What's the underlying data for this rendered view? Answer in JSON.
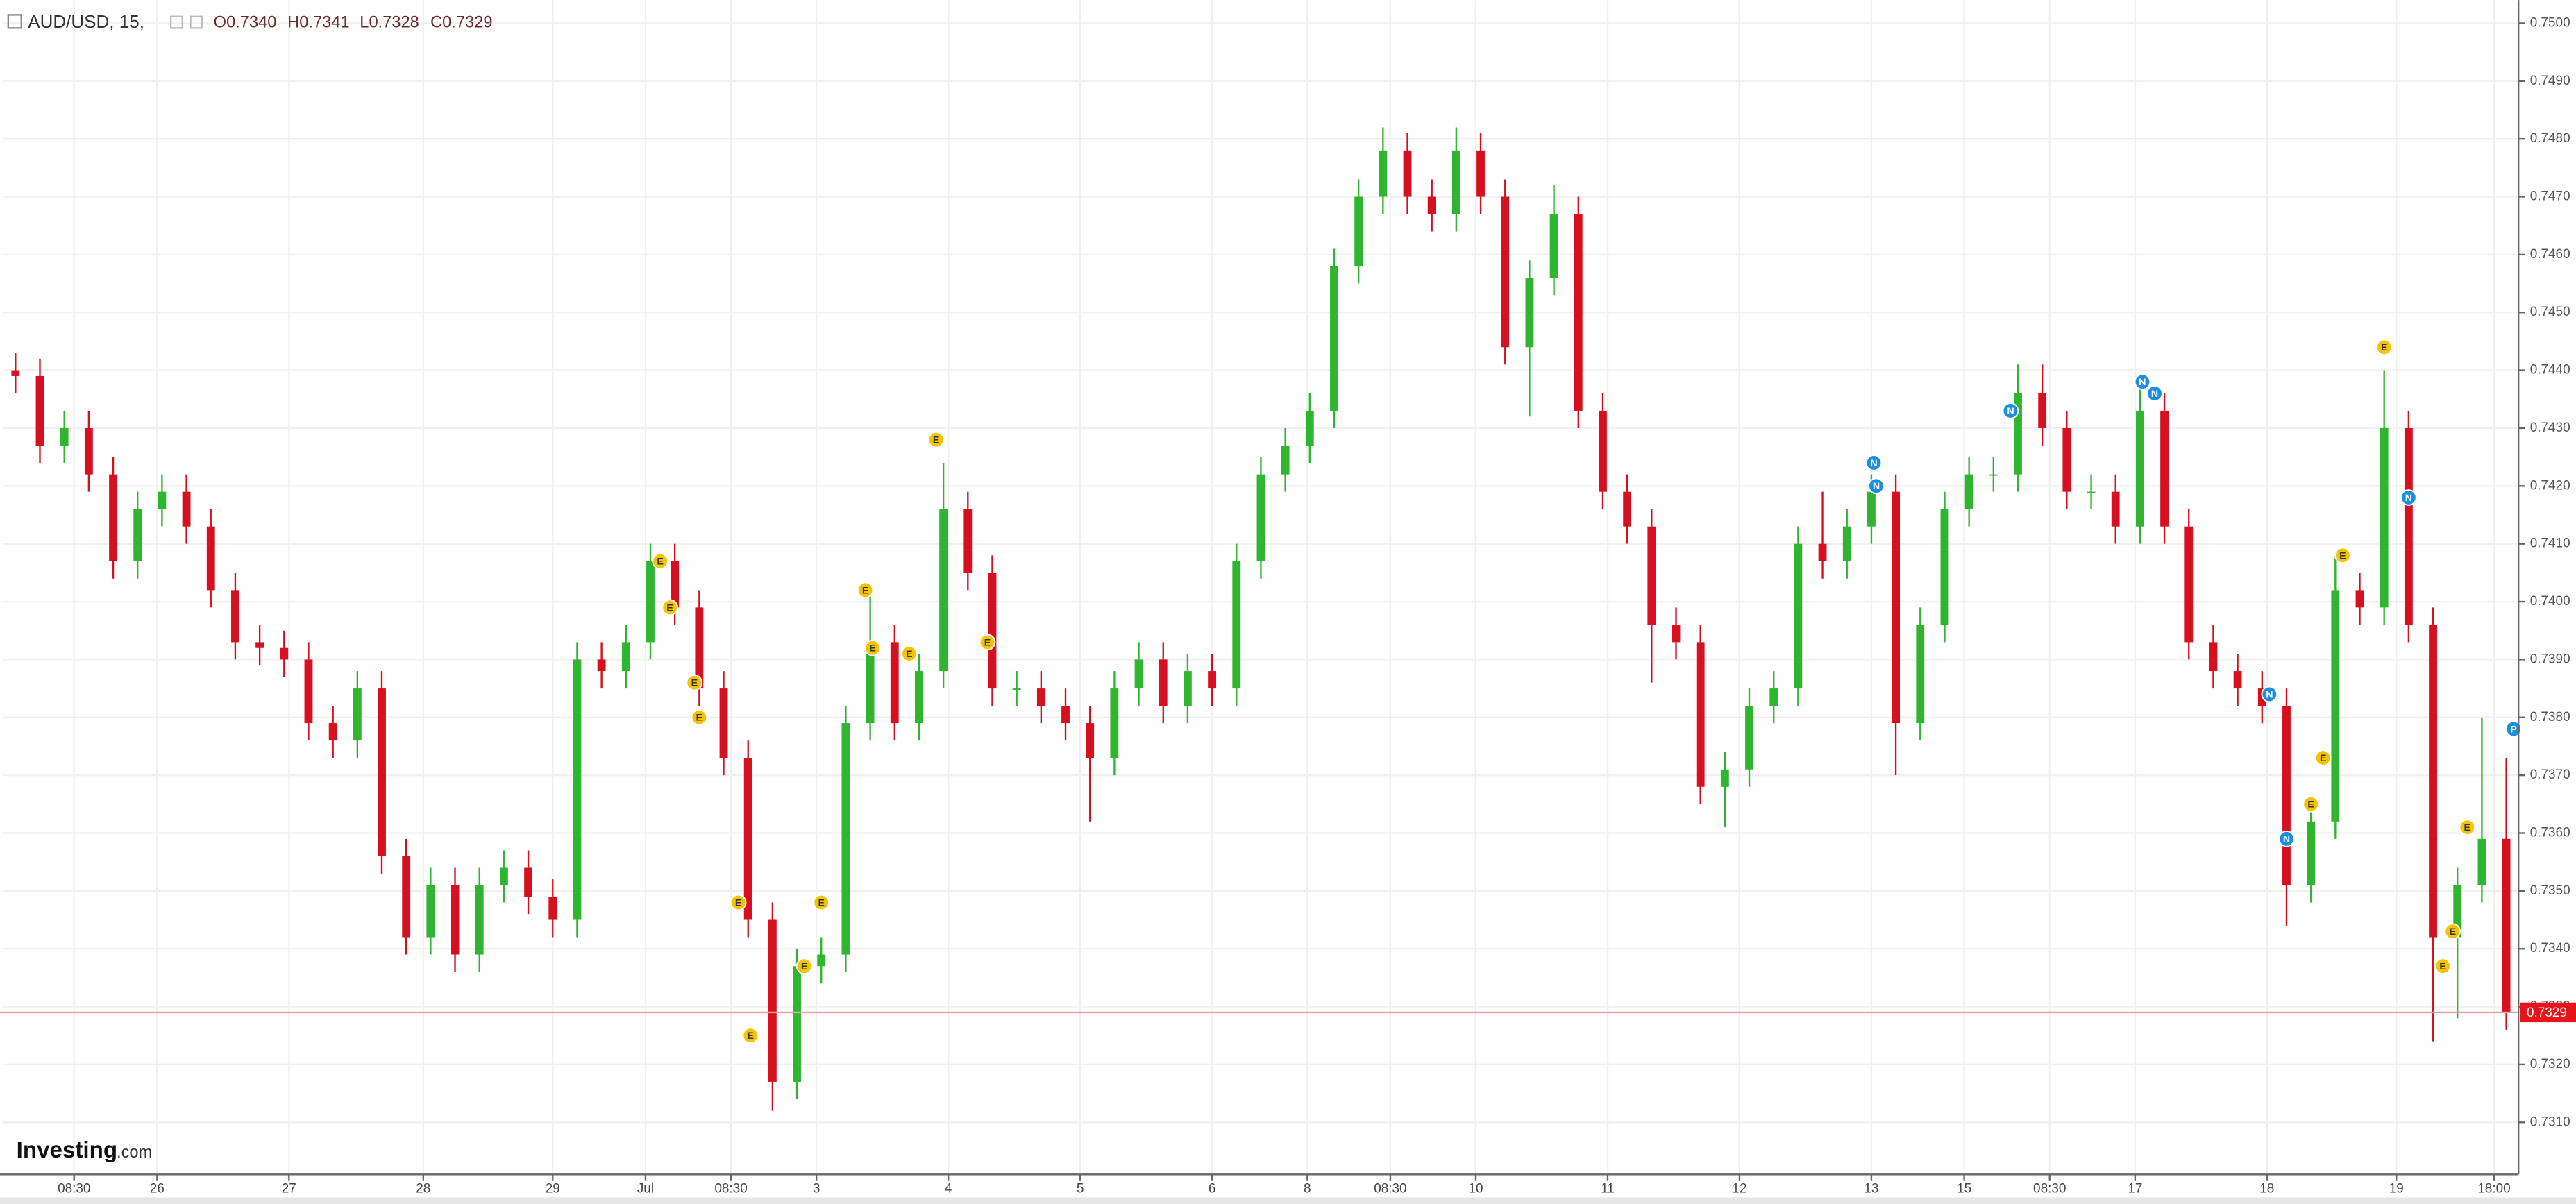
{
  "header": {
    "symbol": "AUD/USD, 15,",
    "quote": [
      "O0.7340",
      "H0.7341",
      "L0.7328",
      "C0.7329"
    ]
  },
  "logo": {
    "brand": "Investing",
    "suffix": ".com"
  },
  "chart_data": {
    "type": "candlestick",
    "up_color": "#2fb52f",
    "down_color": "#d6101e",
    "grid": true,
    "xlim": [
      -0.5,
      102.5
    ],
    "xticks": [
      {
        "value": 2.4,
        "label": "08:30"
      },
      {
        "value": 5.8,
        "label": "26"
      },
      {
        "value": 11.2,
        "label": "27"
      },
      {
        "value": 16.7,
        "label": "28"
      },
      {
        "value": 22.0,
        "label": "29"
      },
      {
        "value": 25.8,
        "label": "Jul"
      },
      {
        "value": 29.3,
        "label": "08:30"
      },
      {
        "value": 32.8,
        "label": "3"
      },
      {
        "value": 38.2,
        "label": "4"
      },
      {
        "value": 43.6,
        "label": "5"
      },
      {
        "value": 49.0,
        "label": "6"
      },
      {
        "value": 52.9,
        "label": "8"
      },
      {
        "value": 56.3,
        "label": "08:30"
      },
      {
        "value": 59.8,
        "label": "10"
      },
      {
        "value": 65.2,
        "label": "11"
      },
      {
        "value": 70.6,
        "label": "12"
      },
      {
        "value": 76.0,
        "label": "13"
      },
      {
        "value": 79.8,
        "label": "15"
      },
      {
        "value": 83.3,
        "label": "08:30"
      },
      {
        "value": 86.8,
        "label": "17"
      },
      {
        "value": 92.2,
        "label": "18"
      },
      {
        "value": 97.5,
        "label": "19"
      },
      {
        "value": 101.5,
        "label": "18:00"
      }
    ],
    "ylim": [
      0.7301,
      0.7504
    ],
    "yticks": [
      {
        "value": 0.731,
        "label": "0.7310"
      },
      {
        "value": 0.732,
        "label": "0.7320"
      },
      {
        "value": 0.733,
        "label": "0.7330"
      },
      {
        "value": 0.734,
        "label": "0.7340"
      },
      {
        "value": 0.735,
        "label": "0.7350"
      },
      {
        "value": 0.736,
        "label": "0.7360"
      },
      {
        "value": 0.737,
        "label": "0.7370"
      },
      {
        "value": 0.738,
        "label": "0.7380"
      },
      {
        "value": 0.739,
        "label": "0.7390"
      },
      {
        "value": 0.74,
        "label": "0.7400"
      },
      {
        "value": 0.741,
        "label": "0.7410"
      },
      {
        "value": 0.742,
        "label": "0.7420"
      },
      {
        "value": 0.743,
        "label": "0.7430"
      },
      {
        "value": 0.744,
        "label": "0.7440"
      },
      {
        "value": 0.745,
        "label": "0.7450"
      },
      {
        "value": 0.746,
        "label": "0.7460"
      },
      {
        "value": 0.747,
        "label": "0.7470"
      },
      {
        "value": 0.748,
        "label": "0.7480"
      },
      {
        "value": 0.749,
        "label": "0.7490"
      },
      {
        "value": 0.75,
        "label": "0.7500"
      }
    ],
    "last_price": {
      "value": 0.7329,
      "label": "0.7329"
    },
    "open": [
      0.744,
      0.7439,
      0.7427,
      0.743,
      0.7422,
      0.7407,
      0.7416,
      0.7419,
      0.7413,
      0.7402,
      0.7393,
      0.7392,
      0.739,
      0.7379,
      0.7376,
      0.7385,
      0.7356,
      0.7342,
      0.7351,
      0.7339,
      0.7351,
      0.7354,
      0.7349,
      0.7345,
      0.739,
      0.7388,
      0.7393,
      0.7407,
      0.7399,
      0.7385,
      0.7373,
      0.7345,
      0.7317,
      0.7337,
      0.7339,
      0.7379,
      0.7393,
      0.7379,
      0.7388,
      0.7416,
      0.7405,
      0.7385,
      0.7385,
      0.7382,
      0.7379,
      0.7373,
      0.7385,
      0.739,
      0.7382,
      0.7388,
      0.7385,
      0.7407,
      0.7422,
      0.7427,
      0.7433,
      0.7458,
      0.747,
      0.7478,
      0.747,
      0.7467,
      0.7478,
      0.747,
      0.7444,
      0.7456,
      0.7467,
      0.7433,
      0.7419,
      0.7413,
      0.7396,
      0.7393,
      0.7368,
      0.7371,
      0.7382,
      0.7385,
      0.741,
      0.7407,
      0.7413,
      0.7419,
      0.7379,
      0.7396,
      0.7416,
      0.7422,
      0.7422,
      0.7436,
      0.743,
      0.7419,
      0.7419,
      0.7413,
      0.7433,
      0.7413,
      0.7393,
      0.7388,
      0.7385,
      0.7382,
      0.7351,
      0.7362,
      0.7402,
      0.7399,
      0.743,
      0.7396,
      0.7342,
      0.7351,
      0.7359
    ],
    "high": [
      0.7443,
      0.7442,
      0.7433,
      0.7433,
      0.7425,
      0.7419,
      0.7422,
      0.7422,
      0.7416,
      0.7405,
      0.7396,
      0.7395,
      0.7393,
      0.7382,
      0.7388,
      0.7388,
      0.7359,
      0.7354,
      0.7354,
      0.7354,
      0.7357,
      0.7357,
      0.7352,
      0.7393,
      0.7393,
      0.7396,
      0.741,
      0.741,
      0.7402,
      0.7388,
      0.7376,
      0.7348,
      0.734,
      0.7342,
      0.7382,
      0.7403,
      0.7396,
      0.7391,
      0.7424,
      0.7419,
      0.7408,
      0.7388,
      0.7388,
      0.7385,
      0.7382,
      0.7388,
      0.7393,
      0.7393,
      0.7391,
      0.7391,
      0.741,
      0.7425,
      0.743,
      0.7436,
      0.7461,
      0.7473,
      0.7482,
      0.7481,
      0.7473,
      0.7482,
      0.7481,
      0.7473,
      0.7459,
      0.7472,
      0.747,
      0.7436,
      0.7422,
      0.7416,
      0.7399,
      0.7396,
      0.7374,
      0.7385,
      0.7388,
      0.7413,
      0.7419,
      0.7416,
      0.7422,
      0.7422,
      0.7399,
      0.7419,
      0.7425,
      0.7425,
      0.7441,
      0.7441,
      0.7433,
      0.7422,
      0.7422,
      0.7438,
      0.7436,
      0.7416,
      0.7396,
      0.7391,
      0.7388,
      0.7385,
      0.7365,
      0.7408,
      0.7405,
      0.744,
      0.7433,
      0.7399,
      0.7354,
      0.738,
      0.7373
    ],
    "low": [
      0.7436,
      0.7424,
      0.7424,
      0.7419,
      0.7404,
      0.7404,
      0.7413,
      0.741,
      0.7399,
      0.739,
      0.7389,
      0.7387,
      0.7376,
      0.7373,
      0.7373,
      0.7353,
      0.7339,
      0.7339,
      0.7336,
      0.7336,
      0.7348,
      0.7346,
      0.7342,
      0.7342,
      0.7385,
      0.7385,
      0.739,
      0.7396,
      0.7382,
      0.737,
      0.7342,
      0.7312,
      0.7314,
      0.7334,
      0.7336,
      0.7376,
      0.7376,
      0.7376,
      0.7385,
      0.7402,
      0.7382,
      0.7382,
      0.7379,
      0.7376,
      0.7362,
      0.737,
      0.7382,
      0.7379,
      0.7379,
      0.7382,
      0.7382,
      0.7404,
      0.7419,
      0.7424,
      0.743,
      0.7455,
      0.7467,
      0.7467,
      0.7464,
      0.7464,
      0.7467,
      0.7441,
      0.7432,
      0.7453,
      0.743,
      0.7416,
      0.741,
      0.7386,
      0.739,
      0.7365,
      0.7361,
      0.7368,
      0.7379,
      0.7382,
      0.7404,
      0.7404,
      0.741,
      0.737,
      0.7376,
      0.7393,
      0.7413,
      0.7419,
      0.7419,
      0.7427,
      0.7416,
      0.7416,
      0.741,
      0.741,
      0.741,
      0.739,
      0.7385,
      0.7382,
      0.7379,
      0.7344,
      0.7348,
      0.7359,
      0.7396,
      0.7396,
      0.7393,
      0.7324,
      0.7328,
      0.7348,
      0.7326
    ],
    "close": [
      0.7439,
      0.7427,
      0.743,
      0.7422,
      0.7407,
      0.7416,
      0.7419,
      0.7413,
      0.7402,
      0.7393,
      0.7392,
      0.739,
      0.7379,
      0.7376,
      0.7385,
      0.7356,
      0.7342,
      0.7351,
      0.7339,
      0.7351,
      0.7354,
      0.7349,
      0.7345,
      0.739,
      0.7388,
      0.7393,
      0.7407,
      0.7399,
      0.7385,
      0.7373,
      0.7345,
      0.7317,
      0.7337,
      0.7339,
      0.7379,
      0.7393,
      0.7379,
      0.7388,
      0.7416,
      0.7405,
      0.7385,
      0.7385,
      0.7382,
      0.7379,
      0.7373,
      0.7385,
      0.739,
      0.7382,
      0.7388,
      0.7385,
      0.7407,
      0.7422,
      0.7427,
      0.7433,
      0.7458,
      0.747,
      0.7478,
      0.747,
      0.7467,
      0.7478,
      0.747,
      0.7444,
      0.7456,
      0.7467,
      0.7433,
      0.7419,
      0.7413,
      0.7396,
      0.7393,
      0.7368,
      0.7371,
      0.7382,
      0.7385,
      0.741,
      0.7407,
      0.7413,
      0.7419,
      0.7379,
      0.7396,
      0.7416,
      0.7422,
      0.7422,
      0.7436,
      0.743,
      0.7419,
      0.7419,
      0.7413,
      0.7433,
      0.7413,
      0.7393,
      0.7388,
      0.7385,
      0.7382,
      0.7351,
      0.7362,
      0.7402,
      0.7399,
      0.743,
      0.7396,
      0.7342,
      0.7351,
      0.7359,
      0.7329
    ],
    "events": [
      {
        "label": "E",
        "x": 26.4,
        "y": 0.7407
      },
      {
        "label": "E",
        "x": 26.8,
        "y": 0.7399
      },
      {
        "label": "E",
        "x": 27.8,
        "y": 0.7386
      },
      {
        "label": "E",
        "x": 28.0,
        "y": 0.738
      },
      {
        "label": "E",
        "x": 29.6,
        "y": 0.7348
      },
      {
        "label": "E",
        "x": 30.1,
        "y": 0.7325
      },
      {
        "label": "E",
        "x": 32.3,
        "y": 0.7337
      },
      {
        "label": "E",
        "x": 33.0,
        "y": 0.7348
      },
      {
        "label": "E",
        "x": 34.8,
        "y": 0.7402
      },
      {
        "label": "E",
        "x": 35.1,
        "y": 0.7392
      },
      {
        "label": "E",
        "x": 36.6,
        "y": 0.7391
      },
      {
        "label": "E",
        "x": 37.7,
        "y": 0.7428
      },
      {
        "label": "E",
        "x": 39.8,
        "y": 0.7393
      },
      {
        "label": "N",
        "x": 76.1,
        "y": 0.7424
      },
      {
        "label": "N",
        "x": 76.2,
        "y": 0.742
      },
      {
        "label": "N",
        "x": 81.7,
        "y": 0.7433
      },
      {
        "label": "N",
        "x": 87.1,
        "y": 0.7438
      },
      {
        "label": "N",
        "x": 87.6,
        "y": 0.7436
      },
      {
        "label": "N",
        "x": 92.3,
        "y": 0.7384
      },
      {
        "label": "N",
        "x": 93.0,
        "y": 0.7359
      },
      {
        "label": "E",
        "x": 94.0,
        "y": 0.7365
      },
      {
        "label": "E",
        "x": 94.5,
        "y": 0.7373
      },
      {
        "label": "E",
        "x": 95.3,
        "y": 0.7408
      },
      {
        "label": "E",
        "x": 97.0,
        "y": 0.7444
      },
      {
        "label": "N",
        "x": 98.0,
        "y": 0.7418
      },
      {
        "label": "E",
        "x": 99.8,
        "y": 0.7343
      },
      {
        "label": "E",
        "x": 99.4,
        "y": 0.7337
      },
      {
        "label": "E",
        "x": 100.4,
        "y": 0.7361
      },
      {
        "label": "P",
        "x": 102.3,
        "y": 0.7378
      }
    ]
  }
}
